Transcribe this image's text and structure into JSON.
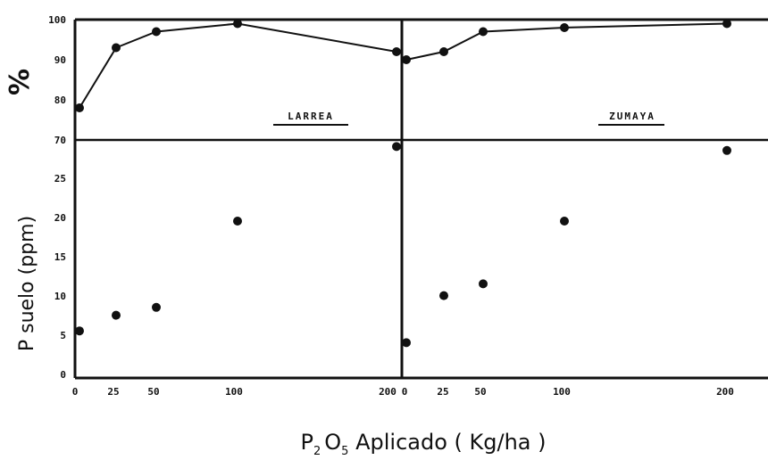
{
  "chart_data": [
    {
      "type": "line",
      "panel": "LARREA",
      "ylabel": "%",
      "ylim": [
        70,
        100
      ],
      "yticks": [
        "100",
        "90",
        "80",
        "70"
      ],
      "x": [
        0,
        25,
        50,
        100,
        200
      ],
      "values": [
        78,
        93,
        97,
        99,
        92
      ]
    },
    {
      "type": "line",
      "panel": "ZUMAYA",
      "ylabel": "%",
      "ylim": [
        70,
        100
      ],
      "x": [
        0,
        25,
        50,
        100,
        200
      ],
      "values": [
        90,
        92,
        97,
        98,
        99
      ]
    },
    {
      "type": "scatter",
      "panel": "LARREA",
      "ylabel": "P suelo (ppm)",
      "ylim": [
        0,
        30
      ],
      "yticks": [
        "25",
        "20",
        "15",
        "10",
        "5",
        "0"
      ],
      "x": [
        0,
        25,
        50,
        100,
        200
      ],
      "values": [
        6,
        8,
        9,
        20,
        29.5
      ]
    },
    {
      "type": "scatter",
      "panel": "ZUMAYA",
      "ylabel": "P suelo (ppm)",
      "ylim": [
        0,
        30
      ],
      "x": [
        0,
        25,
        50,
        100,
        200
      ],
      "values": [
        4.5,
        10.5,
        12,
        20,
        29
      ]
    }
  ],
  "axes": {
    "xlabel_main": "P",
    "xlabel_sub1": "2",
    "xlabel_mid": "O",
    "xlabel_sub2": "5",
    "xlabel_rest": " Aplicado ( Kg/ha )",
    "xticks_left": [
      "0",
      "25",
      "50",
      "100",
      "200"
    ],
    "xticks_right": [
      "0",
      "25",
      "50",
      "100",
      "200"
    ],
    "ylabel_top": "%",
    "ylabel_bottom": "P suelo (ppm)"
  },
  "panels": {
    "left_label": "LARREA",
    "right_label": "ZUMAYA"
  },
  "colors": {
    "ink": "#111111",
    "background": "#ffffff"
  }
}
